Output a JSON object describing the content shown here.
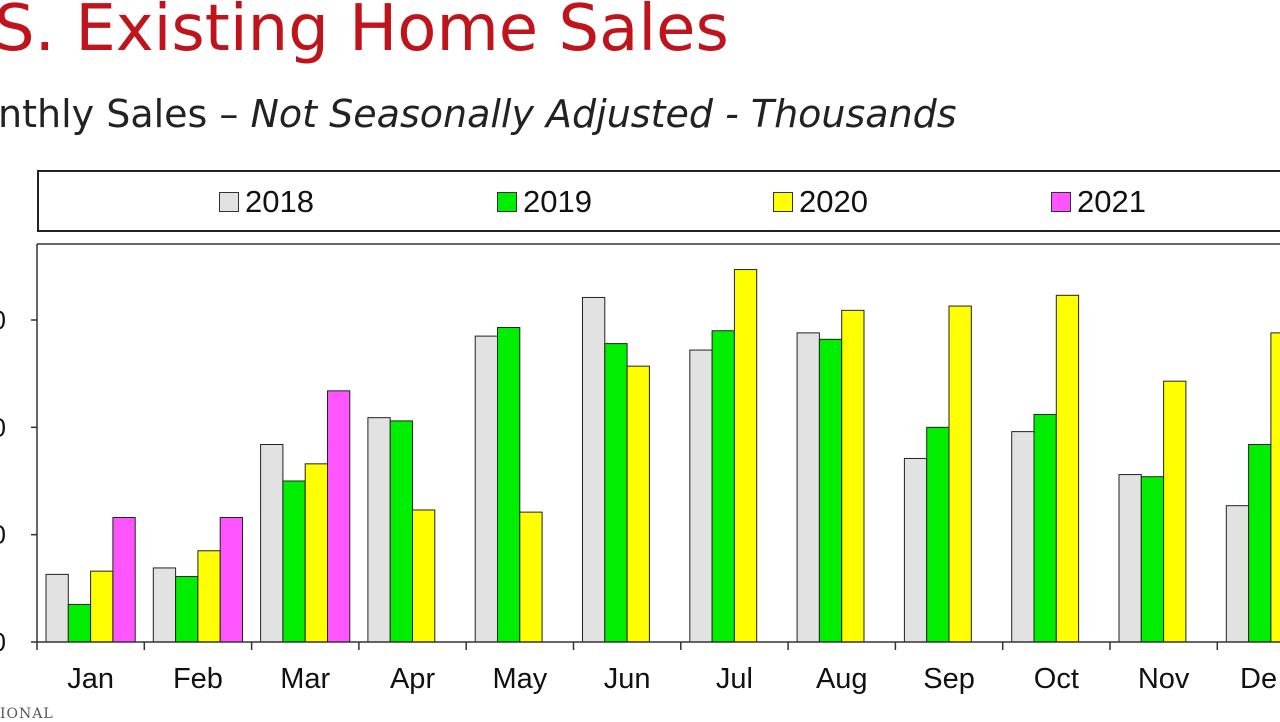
{
  "title": "S. Existing Home Sales",
  "subtitle_plain": "nthly Sales – ",
  "subtitle_italic": "Not Seasonally Adjusted - Thousands",
  "footer_fragment": "IONAL",
  "colors": {
    "title": "#c0141c",
    "2018": "#e2e2e2",
    "2019": "#00ee00",
    "2020": "#ffff00",
    "2021": "#ff55ff"
  },
  "chart_data": {
    "type": "bar",
    "title": "S. Existing Home Sales",
    "subtitle": "nthly Sales – Not Seasonally Adjusted - Thousands",
    "categories": [
      "Jan",
      "Feb",
      "Mar",
      "Apr",
      "May",
      "Jun",
      "Jul",
      "Aug",
      "Sep",
      "Oct",
      "Nov",
      "De"
    ],
    "series": [
      {
        "name": "2018",
        "color": "#e2e2e2",
        "values": [
          63,
          69,
          184,
          209,
          285,
          321,
          272,
          288,
          171,
          196,
          156,
          127
        ]
      },
      {
        "name": "2019",
        "color": "#00ee00",
        "values": [
          35,
          61,
          150,
          206,
          293,
          278,
          290,
          282,
          200,
          212,
          154,
          184
        ]
      },
      {
        "name": "2020",
        "color": "#ffff00",
        "values": [
          66,
          85,
          166,
          123,
          121,
          257,
          347,
          309,
          313,
          323,
          243,
          288
        ]
      },
      {
        "name": "2021",
        "color": "#ff55ff",
        "values": [
          116,
          116,
          234,
          null,
          null,
          null,
          null,
          null,
          null,
          null,
          null,
          null
        ]
      }
    ],
    "ylim": [
      0,
      370
    ],
    "yticks": [
      0,
      100,
      200,
      300
    ],
    "ytick_labels": [
      "0",
      "0",
      "0",
      "0"
    ],
    "legend_position": "top",
    "grid": false
  }
}
